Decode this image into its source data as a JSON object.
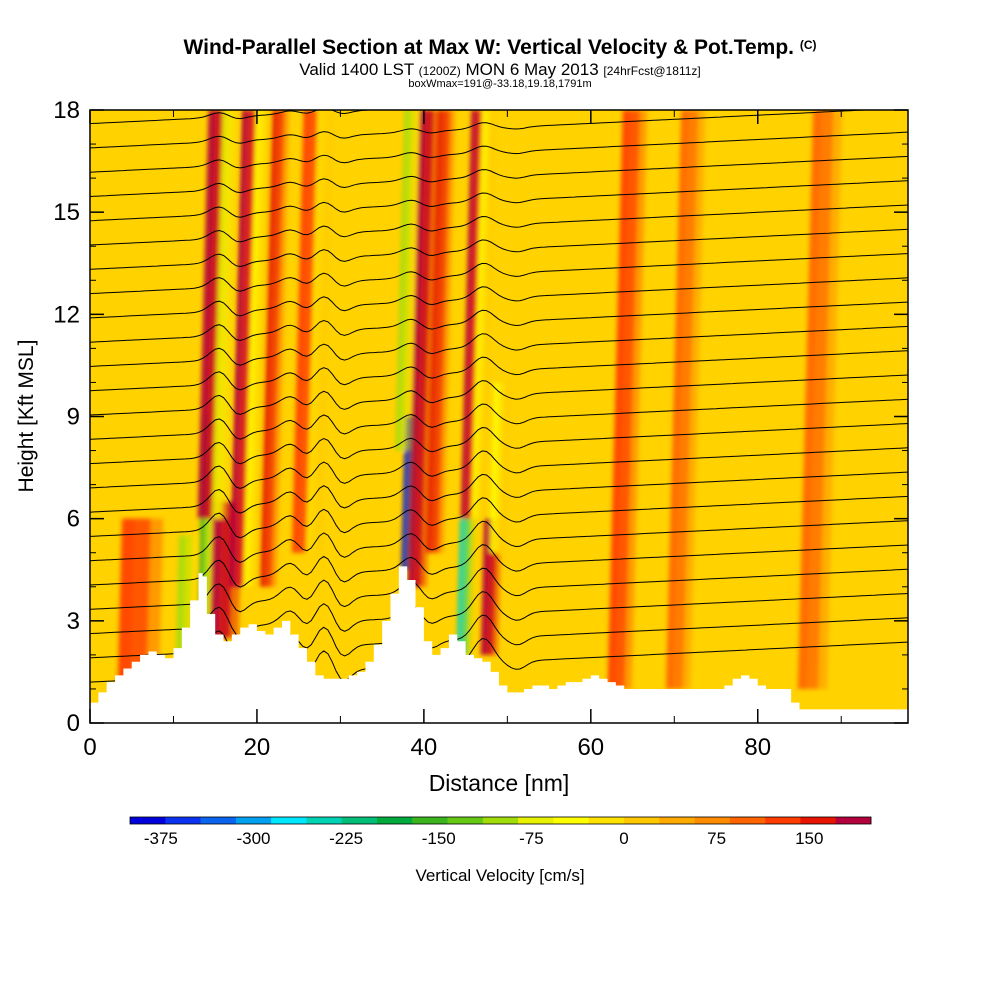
{
  "title": {
    "main": "Wind-Parallel Section at Max W: Vertical Velocity & Pot.Temp.",
    "copyright": "(C)",
    "valid_prefix": "Valid 1400 LST",
    "valid_utc": "(1200Z)",
    "valid_date": "MON 6 May 2013",
    "forecast": "[24hrFcst@1811z]",
    "box_info": "boxWmax=191@-33.18,19.18,1791m"
  },
  "chart_data": {
    "type": "heatmap",
    "xlabel": "Distance [nm]",
    "ylabel": "Height [Kft MSL]",
    "xlim": [
      0,
      98
    ],
    "ylim": [
      0,
      18
    ],
    "x_ticks": [
      0,
      20,
      40,
      60,
      80
    ],
    "y_ticks": [
      0,
      3,
      6,
      9,
      12,
      15,
      18
    ],
    "colorbar": {
      "label": "Vertical Velocity [cm/s]",
      "min": -400,
      "max": 200,
      "step": 25,
      "tick_values": [
        -375,
        -300,
        -225,
        -150,
        -75,
        0,
        75,
        150
      ],
      "colors": [
        "#0000dc",
        "#0a32f0",
        "#0a64f0",
        "#00a0f0",
        "#00e6ff",
        "#00d2b4",
        "#00be78",
        "#00aa3c",
        "#3cb41e",
        "#64c814",
        "#a0dc0a",
        "#e6f000",
        "#ffff00",
        "#ffe100",
        "#ffc800",
        "#ffaa00",
        "#ff8c00",
        "#ff6400",
        "#ff3c00",
        "#e61400",
        "#b4003c"
      ]
    },
    "terrain": [
      [
        0,
        0.6
      ],
      [
        1,
        0.9
      ],
      [
        2,
        1.2
      ],
      [
        3,
        1.4
      ],
      [
        4,
        1.6
      ],
      [
        5,
        1.8
      ],
      [
        6,
        2.0
      ],
      [
        7,
        2.1
      ],
      [
        8,
        2.0
      ],
      [
        9,
        1.9
      ],
      [
        10,
        2.2
      ],
      [
        11,
        2.8
      ],
      [
        12,
        3.6
      ],
      [
        13,
        4.4
      ],
      [
        13.5,
        4.3
      ],
      [
        14,
        3.2
      ],
      [
        15,
        2.6
      ],
      [
        16,
        2.4
      ],
      [
        17,
        2.6
      ],
      [
        18,
        2.8
      ],
      [
        19,
        2.9
      ],
      [
        20,
        2.7
      ],
      [
        21,
        2.6
      ],
      [
        22,
        2.8
      ],
      [
        23,
        3.0
      ],
      [
        24,
        2.6
      ],
      [
        25,
        2.2
      ],
      [
        26,
        1.8
      ],
      [
        27,
        1.4
      ],
      [
        28,
        1.3
      ],
      [
        29,
        1.3
      ],
      [
        30,
        1.3
      ],
      [
        31,
        1.4
      ],
      [
        32,
        1.5
      ],
      [
        33,
        1.8
      ],
      [
        34,
        2.3
      ],
      [
        35,
        3.0
      ],
      [
        36,
        3.8
      ],
      [
        37,
        4.6
      ],
      [
        38,
        4.2
      ],
      [
        39,
        3.4
      ],
      [
        40,
        2.4
      ],
      [
        41,
        2.0
      ],
      [
        42,
        2.2
      ],
      [
        43,
        2.6
      ],
      [
        44,
        2.4
      ],
      [
        45,
        2.0
      ],
      [
        46,
        1.9
      ],
      [
        47,
        1.8
      ],
      [
        48,
        1.5
      ],
      [
        49,
        1.1
      ],
      [
        50,
        0.9
      ],
      [
        51,
        0.9
      ],
      [
        52,
        1.0
      ],
      [
        53,
        1.1
      ],
      [
        54,
        1.1
      ],
      [
        55,
        1.0
      ],
      [
        56,
        1.1
      ],
      [
        57,
        1.2
      ],
      [
        58,
        1.2
      ],
      [
        59,
        1.3
      ],
      [
        60,
        1.4
      ],
      [
        61,
        1.3
      ],
      [
        62,
        1.2
      ],
      [
        63,
        1.1
      ],
      [
        64,
        1.0
      ],
      [
        65,
        1.0
      ],
      [
        66,
        1.0
      ],
      [
        67,
        1.0
      ],
      [
        68,
        1.0
      ],
      [
        69,
        1.0
      ],
      [
        70,
        1.0
      ],
      [
        71,
        1.0
      ],
      [
        72,
        1.0
      ],
      [
        73,
        1.0
      ],
      [
        74,
        1.0
      ],
      [
        75,
        1.0
      ],
      [
        76,
        1.1
      ],
      [
        77,
        1.3
      ],
      [
        78,
        1.4
      ],
      [
        79,
        1.3
      ],
      [
        80,
        1.1
      ],
      [
        81,
        1.0
      ],
      [
        82,
        1.0
      ],
      [
        83,
        1.0
      ],
      [
        84,
        0.6
      ],
      [
        85,
        0.4
      ],
      [
        86,
        0.4
      ],
      [
        87,
        0.4
      ],
      [
        88,
        0.4
      ],
      [
        89,
        0.4
      ],
      [
        90,
        0.4
      ],
      [
        91,
        0.4
      ],
      [
        92,
        0.4
      ],
      [
        93,
        0.4
      ],
      [
        94,
        0.4
      ],
      [
        95,
        0.4
      ],
      [
        96,
        0.4
      ],
      [
        97,
        0.4
      ],
      [
        98,
        0.4
      ]
    ],
    "vertical_velocity_features": [
      {
        "x": 5,
        "y_bottom": 1,
        "y_top": 6,
        "w": 1.7,
        "kind": "updraft",
        "value": 60
      },
      {
        "x": 11,
        "y_bottom": 1,
        "y_top": 5.5,
        "w": 0.8,
        "kind": "downdraft",
        "value": -150
      },
      {
        "x": 13.5,
        "y_bottom": 3,
        "y_top": 9,
        "w": 0.6,
        "kind": "downdraft",
        "value": -190
      },
      {
        "x": 15.5,
        "y_bottom": 2.5,
        "y_top": 6.5,
        "w": 1.2,
        "kind": "updraft",
        "value": 170
      },
      {
        "x": 13.8,
        "y_bottom": 6,
        "y_top": 18,
        "w": 0.9,
        "kind": "updraft",
        "value": 140
      },
      {
        "x": 15.2,
        "y_bottom": 6,
        "y_top": 18,
        "w": 0.6,
        "kind": "downdraft",
        "value": -120
      },
      {
        "x": 17.5,
        "y_bottom": 4,
        "y_top": 18,
        "w": 0.8,
        "kind": "updraft",
        "value": 110
      },
      {
        "x": 19,
        "y_bottom": 4,
        "y_top": 18,
        "w": 0.6,
        "kind": "downdraft",
        "value": -90
      },
      {
        "x": 21,
        "y_bottom": 4,
        "y_top": 18,
        "w": 0.7,
        "kind": "updraft",
        "value": 80
      },
      {
        "x": 25,
        "y_bottom": 5,
        "y_top": 18,
        "w": 0.8,
        "kind": "updraft",
        "value": 70
      },
      {
        "x": 26.5,
        "y_bottom": 5,
        "y_top": 18,
        "w": 0.6,
        "kind": "downdraft",
        "value": -70
      },
      {
        "x": 37.8,
        "y_bottom": 4.5,
        "y_top": 9,
        "w": 0.5,
        "kind": "downdraft",
        "value": -400
      },
      {
        "x": 38.8,
        "y_bottom": 4,
        "y_top": 18,
        "w": 0.8,
        "kind": "updraft",
        "value": 180
      },
      {
        "x": 37.2,
        "y_bottom": 8,
        "y_top": 18,
        "w": 0.6,
        "kind": "downdraft",
        "value": -140
      },
      {
        "x": 41,
        "y_bottom": 5,
        "y_top": 18,
        "w": 0.7,
        "kind": "updraft",
        "value": 90
      },
      {
        "x": 44.5,
        "y_bottom": 2,
        "y_top": 6,
        "w": 0.6,
        "kind": "downdraft",
        "value": -260
      },
      {
        "x": 45,
        "y_bottom": 6,
        "y_top": 18,
        "w": 0.6,
        "kind": "updraft",
        "value": 100
      },
      {
        "x": 46.2,
        "y_bottom": 6,
        "y_top": 18,
        "w": 0.5,
        "kind": "downdraft",
        "value": -100
      },
      {
        "x": 47.5,
        "y_bottom": 2,
        "y_top": 6,
        "w": 0.7,
        "kind": "updraft",
        "value": 160
      },
      {
        "x": 48.5,
        "y_bottom": 5,
        "y_top": 10,
        "w": 0.6,
        "kind": "downdraft",
        "value": -80
      },
      {
        "x": 63,
        "y_bottom": 1,
        "y_top": 18,
        "w": 1.0,
        "kind": "updraft",
        "value": 50
      },
      {
        "x": 70,
        "y_bottom": 1,
        "y_top": 18,
        "w": 1.0,
        "kind": "updraft",
        "value": 45
      },
      {
        "x": 86,
        "y_bottom": 1,
        "y_top": 18,
        "w": 1.2,
        "kind": "updraft",
        "value": 40
      }
    ],
    "potential_temperature_contours": {
      "levels": 24,
      "y_start": 1.2,
      "y_end": 17.6,
      "wave_crests_x": [
        15.5,
        24,
        28,
        38.5,
        47,
        49
      ]
    }
  }
}
